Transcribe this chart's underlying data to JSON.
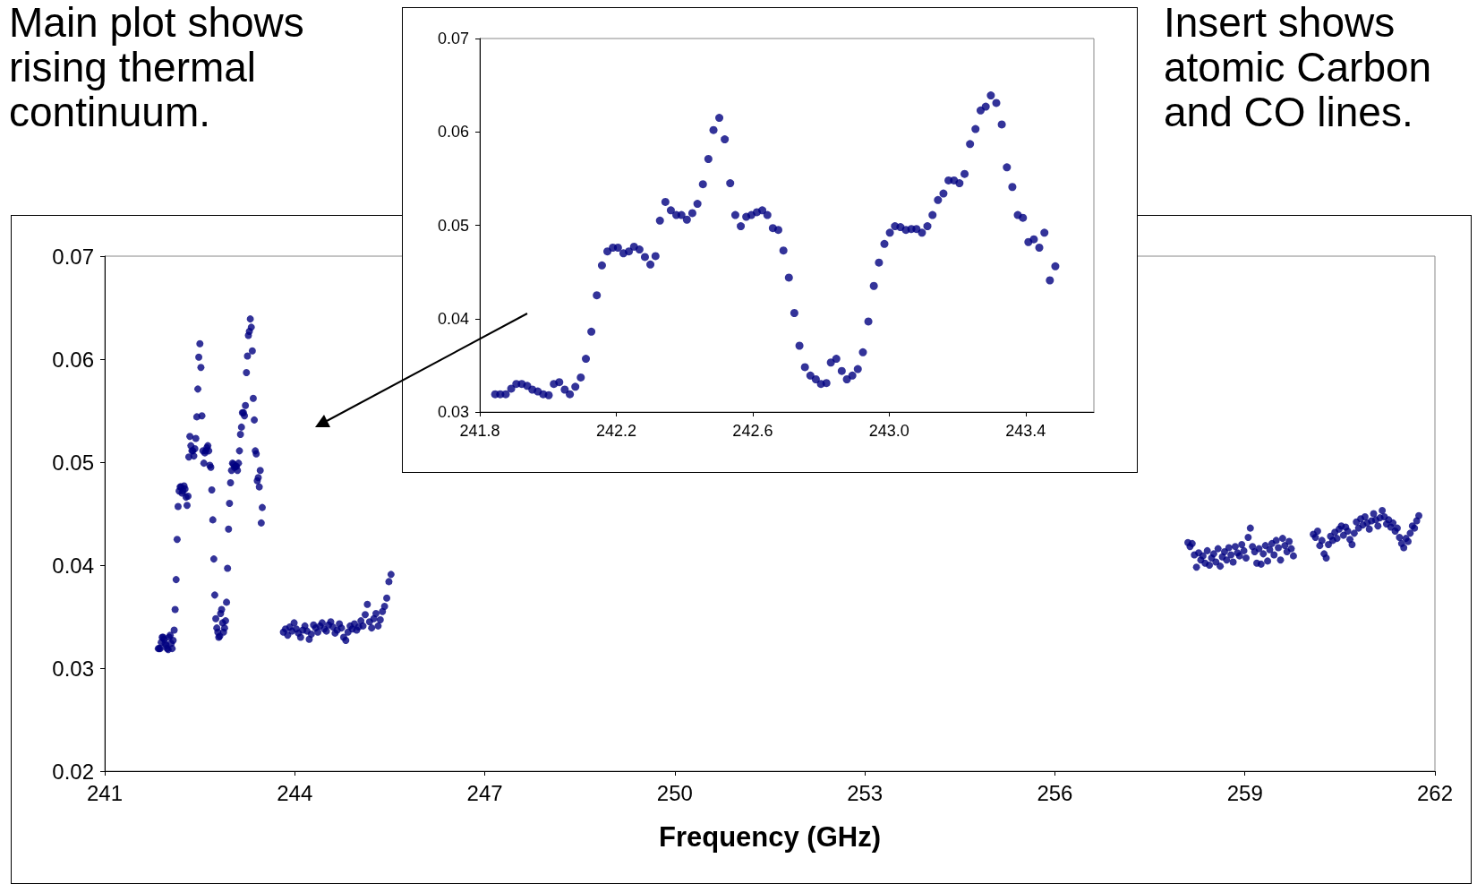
{
  "chart_data": [
    {
      "type": "scatter",
      "xlabel": "Frequency (GHz)",
      "marker": "circle",
      "grid": false,
      "annotations": [
        "Main plot shows rising thermal continuum.",
        "Insert shows atomic Carbon and CO lines."
      ],
      "xlim": [
        241,
        262
      ],
      "xticks": [
        241,
        244,
        247,
        250,
        253,
        256,
        259,
        262
      ],
      "ylim": [
        0.02,
        0.07
      ],
      "yticks": [
        0.02,
        0.03,
        0.04,
        0.05,
        0.06,
        0.07
      ],
      "series": [
        {
          "color": "#000080",
          "x": [
            241.845,
            241.86,
            241.876,
            241.892,
            241.907,
            241.923,
            241.939,
            241.954,
            241.97,
            241.986,
            242.002,
            242.017,
            242.033,
            242.049,
            242.064,
            242.08,
            242.096,
            242.111,
            242.127,
            242.143,
            242.158,
            242.174,
            242.19,
            242.205,
            242.221,
            242.237,
            242.252,
            242.268,
            242.284,
            242.3,
            242.315,
            242.328,
            242.344,
            242.36,
            242.376,
            242.391,
            242.407,
            242.423,
            242.438,
            242.454,
            242.47,
            242.485,
            242.502,
            242.518,
            242.534,
            242.549,
            242.565,
            242.581,
            242.596,
            242.612,
            242.628,
            242.643,
            242.659,
            242.675,
            242.69,
            242.706,
            242.722,
            242.737,
            242.753,
            242.769,
            242.785,
            242.8,
            242.816,
            242.829,
            242.845,
            242.861,
            242.876,
            242.892,
            242.908,
            242.923,
            242.939,
            242.955,
            242.97,
            242.986,
            243.002,
            243.017,
            243.033,
            243.049,
            243.065,
            243.08,
            243.096,
            243.112,
            243.127,
            243.143,
            243.159,
            243.174,
            243.19,
            243.206,
            243.221,
            243.237,
            243.253,
            243.268,
            243.283,
            243.298,
            243.314,
            243.33,
            243.345,
            243.361,
            243.377,
            243.392,
            243.408,
            243.424,
            243.44,
            243.455,
            243.471,
            243.487,
            243.82,
            243.854,
            243.888,
            243.922,
            243.956,
            243.99,
            244.024,
            244.058,
            244.092,
            244.126,
            244.16,
            244.194,
            244.228,
            244.262,
            244.296,
            244.33,
            244.364,
            244.398,
            244.432,
            244.466,
            244.5,
            244.534,
            244.568,
            244.602,
            244.636,
            244.67,
            244.704,
            244.738,
            244.772,
            244.806,
            244.84,
            244.874,
            244.908,
            244.942,
            244.976,
            245.01,
            245.044,
            245.078,
            245.112,
            245.146,
            245.18,
            245.214,
            245.248,
            245.282,
            245.316,
            245.35,
            245.384,
            245.418,
            245.452,
            245.486,
            245.52,
            258.1,
            258.134,
            258.168,
            258.202,
            258.236,
            258.27,
            258.304,
            258.338,
            258.372,
            258.406,
            258.44,
            258.474,
            258.508,
            258.542,
            258.576,
            258.61,
            258.644,
            258.678,
            258.712,
            258.746,
            258.78,
            258.814,
            258.848,
            258.882,
            258.916,
            258.95,
            258.984,
            259.018,
            259.052,
            259.086,
            259.12,
            259.154,
            259.188,
            259.222,
            259.256,
            259.29,
            259.324,
            259.358,
            259.392,
            259.426,
            259.46,
            259.494,
            259.528,
            259.562,
            259.596,
            259.63,
            259.664,
            259.698,
            259.732,
            259.766,
            260.08,
            260.114,
            260.148,
            260.182,
            260.216,
            260.25,
            260.284,
            260.318,
            260.352,
            260.386,
            260.42,
            260.454,
            260.488,
            260.522,
            260.556,
            260.59,
            260.624,
            260.658,
            260.692,
            260.726,
            260.76,
            260.794,
            260.828,
            260.862,
            260.896,
            260.93,
            260.964,
            260.998,
            261.032,
            261.066,
            261.1,
            261.134,
            261.168,
            261.202,
            261.236,
            261.27,
            261.304,
            261.338,
            261.372,
            261.406,
            261.44,
            261.474,
            261.508,
            261.542,
            261.576,
            261.61,
            261.644,
            261.678,
            261.712,
            261.746
          ],
          "values": [
            0.0319,
            0.0319,
            0.0319,
            0.0325,
            0.033,
            0.033,
            0.0328,
            0.0324,
            0.0322,
            0.0319,
            0.0318,
            0.033,
            0.0332,
            0.0324,
            0.0319,
            0.0327,
            0.0337,
            0.0357,
            0.0386,
            0.0425,
            0.0457,
            0.0472,
            0.0476,
            0.0476,
            0.047,
            0.0472,
            0.0477,
            0.0474,
            0.0466,
            0.0458,
            0.0467,
            0.0505,
            0.0525,
            0.0516,
            0.0511,
            0.0511,
            0.0506,
            0.0513,
            0.0523,
            0.0544,
            0.0571,
            0.0602,
            0.0615,
            0.0592,
            0.0545,
            0.0511,
            0.0499,
            0.0509,
            0.0511,
            0.0514,
            0.0516,
            0.0511,
            0.0497,
            0.0495,
            0.0473,
            0.0444,
            0.0406,
            0.0371,
            0.0348,
            0.0339,
            0.0335,
            0.033,
            0.0331,
            0.0353,
            0.0357,
            0.0344,
            0.0335,
            0.0339,
            0.0346,
            0.0364,
            0.0397,
            0.0435,
            0.046,
            0.048,
            0.0492,
            0.0499,
            0.0498,
            0.0495,
            0.0496,
            0.0496,
            0.0492,
            0.0499,
            0.0511,
            0.0527,
            0.0534,
            0.0548,
            0.0548,
            0.0545,
            0.0555,
            0.0587,
            0.0603,
            0.0623,
            0.0627,
            0.0639,
            0.0631,
            0.0608,
            0.0562,
            0.0541,
            0.0511,
            0.0508,
            0.0482,
            0.0485,
            0.0476,
            0.0492,
            0.0441,
            0.0456,
            0.0335,
            0.0338,
            0.0332,
            0.034,
            0.0336,
            0.0344,
            0.0338,
            0.0334,
            0.033,
            0.0337,
            0.0341,
            0.0336,
            0.0328,
            0.0333,
            0.0342,
            0.0339,
            0.0335,
            0.0341,
            0.0344,
            0.0338,
            0.0336,
            0.0342,
            0.0345,
            0.034,
            0.0334,
            0.0337,
            0.0343,
            0.0339,
            0.033,
            0.0327,
            0.0335,
            0.0341,
            0.0338,
            0.0343,
            0.0337,
            0.034,
            0.0346,
            0.0341,
            0.0352,
            0.0362,
            0.0345,
            0.0339,
            0.0348,
            0.0353,
            0.0341,
            0.0347,
            0.0355,
            0.036,
            0.0368,
            0.0384,
            0.0391,
            0.0422,
            0.0418,
            0.0421,
            0.041,
            0.0398,
            0.0412,
            0.0405,
            0.0409,
            0.0402,
            0.0414,
            0.04,
            0.0407,
            0.0411,
            0.0403,
            0.0416,
            0.0399,
            0.0408,
            0.0413,
            0.0405,
            0.0417,
            0.041,
            0.0403,
            0.0418,
            0.0412,
            0.0409,
            0.042,
            0.0414,
            0.0407,
            0.0427,
            0.0436,
            0.0418,
            0.0413,
            0.0402,
            0.0416,
            0.0401,
            0.0411,
            0.0419,
            0.0404,
            0.0415,
            0.0421,
            0.041,
            0.0424,
            0.0417,
            0.0405,
            0.0426,
            0.0419,
            0.0413,
            0.0423,
            0.0416,
            0.0409,
            0.043,
            0.0427,
            0.0433,
            0.0419,
            0.0424,
            0.0411,
            0.0407,
            0.042,
            0.0428,
            0.0424,
            0.0432,
            0.0426,
            0.0435,
            0.0438,
            0.0429,
            0.0437,
            0.0433,
            0.0425,
            0.042,
            0.0431,
            0.0442,
            0.0436,
            0.0445,
            0.0439,
            0.0447,
            0.0441,
            0.0435,
            0.0443,
            0.045,
            0.0444,
            0.0438,
            0.0446,
            0.0453,
            0.0447,
            0.044,
            0.0444,
            0.0437,
            0.0441,
            0.0433,
            0.0436,
            0.0427,
            0.0421,
            0.0417,
            0.0426,
            0.0423,
            0.0431,
            0.0438,
            0.0436,
            0.0443,
            0.0448
          ]
        }
      ]
    },
    {
      "type": "scatter",
      "marker": "circle",
      "grid": false,
      "xlim": [
        241.8,
        243.6
      ],
      "xticks": [
        241.8,
        242.2,
        242.6,
        {
          "value": 243,
          "label": "243.0"
        },
        243.4
      ],
      "ylim": [
        0.03,
        0.07
      ],
      "yticks": [
        0.03,
        0.04,
        0.05,
        0.06,
        0.07
      ],
      "series": [
        {
          "color": "#000080",
          "x": [
            241.845,
            241.86,
            241.876,
            241.892,
            241.907,
            241.923,
            241.939,
            241.954,
            241.97,
            241.986,
            242.002,
            242.017,
            242.033,
            242.049,
            242.064,
            242.08,
            242.096,
            242.111,
            242.127,
            242.143,
            242.158,
            242.174,
            242.19,
            242.205,
            242.221,
            242.237,
            242.252,
            242.268,
            242.284,
            242.3,
            242.315,
            242.328,
            242.344,
            242.36,
            242.376,
            242.391,
            242.407,
            242.423,
            242.438,
            242.454,
            242.47,
            242.485,
            242.502,
            242.518,
            242.534,
            242.549,
            242.565,
            242.581,
            242.596,
            242.612,
            242.628,
            242.643,
            242.659,
            242.675,
            242.69,
            242.706,
            242.722,
            242.737,
            242.753,
            242.769,
            242.785,
            242.8,
            242.816,
            242.829,
            242.845,
            242.861,
            242.876,
            242.892,
            242.908,
            242.923,
            242.939,
            242.955,
            242.97,
            242.986,
            243.002,
            243.017,
            243.033,
            243.049,
            243.065,
            243.08,
            243.096,
            243.112,
            243.127,
            243.143,
            243.159,
            243.174,
            243.19,
            243.206,
            243.221,
            243.237,
            243.253,
            243.268,
            243.283,
            243.298,
            243.314,
            243.33,
            243.345,
            243.361,
            243.377,
            243.392,
            243.408,
            243.424,
            243.44,
            243.455,
            243.471,
            243.487
          ],
          "values": [
            0.0319,
            0.0319,
            0.0319,
            0.0325,
            0.033,
            0.033,
            0.0328,
            0.0324,
            0.0322,
            0.0319,
            0.0318,
            0.033,
            0.0332,
            0.0324,
            0.0319,
            0.0327,
            0.0337,
            0.0357,
            0.0386,
            0.0425,
            0.0457,
            0.0472,
            0.0476,
            0.0476,
            0.047,
            0.0472,
            0.0477,
            0.0474,
            0.0466,
            0.0458,
            0.0467,
            0.0505,
            0.0525,
            0.0516,
            0.0511,
            0.0511,
            0.0506,
            0.0513,
            0.0523,
            0.0544,
            0.0571,
            0.0602,
            0.0615,
            0.0592,
            0.0545,
            0.0511,
            0.0499,
            0.0509,
            0.0511,
            0.0514,
            0.0516,
            0.0511,
            0.0497,
            0.0495,
            0.0473,
            0.0444,
            0.0406,
            0.0371,
            0.0348,
            0.0339,
            0.0335,
            0.033,
            0.0331,
            0.0353,
            0.0357,
            0.0344,
            0.0335,
            0.0339,
            0.0346,
            0.0364,
            0.0397,
            0.0435,
            0.046,
            0.048,
            0.0492,
            0.0499,
            0.0498,
            0.0495,
            0.0496,
            0.0496,
            0.0492,
            0.0499,
            0.0511,
            0.0527,
            0.0534,
            0.0548,
            0.0548,
            0.0545,
            0.0555,
            0.0587,
            0.0603,
            0.0623,
            0.0627,
            0.0639,
            0.0631,
            0.0608,
            0.0562,
            0.0541,
            0.0511,
            0.0508,
            0.0482,
            0.0485,
            0.0476,
            0.0492,
            0.0441,
            0.0456
          ]
        }
      ]
    }
  ]
}
